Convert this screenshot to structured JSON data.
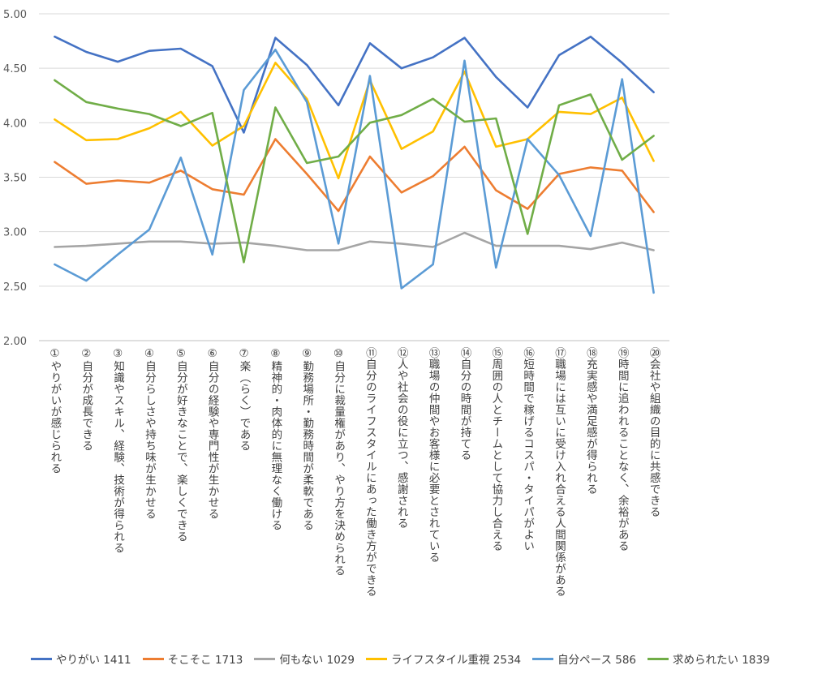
{
  "chart_data": {
    "type": "line",
    "title": "",
    "xlabel": "",
    "ylabel": "",
    "ylim": [
      2.0,
      5.0
    ],
    "yticks": [
      "5.00",
      "4.50",
      "4.00",
      "3.50",
      "3.00",
      "2.50",
      "2.00"
    ],
    "grid": true,
    "legend_position": "bottom",
    "categories": [
      "①やりがいが感じられる",
      "②自分が成長できる",
      "③知識やスキル、経験、技術が得られる",
      "④自分らしさや持ち味が生かせる",
      "⑤自分が好きなことで、楽しくできる",
      "⑥自分の経験や専門性が生かせる",
      "⑦楽（らく）である",
      "⑧精神的・肉体的に無理なく働ける",
      "⑨勤務場所・勤務時間が柔軟である",
      "⑩自分に裁量権があり、やり方を決められる",
      "⑪自分のライフスタイルにあった働き方ができる",
      "⑫人や社会の役に立つ、感謝される",
      "⑬職場の仲間やお客様に必要とされている",
      "⑭自分の時間が持てる",
      "⑮周囲の人とチームとして協力し合える",
      "⑯短時間で稼げるコスパ・タイパがよい",
      "⑰職場には互いに受け入れ合える人間関係がある",
      "⑱充実感や満足感が得られる",
      "⑲時間に追われることなく、余裕がある",
      "⑳会社や組織の目的に共感できる"
    ],
    "series": [
      {
        "name": "やりがい 1411",
        "color": "#4472C4",
        "values": [
          4.79,
          4.65,
          4.56,
          4.66,
          4.68,
          4.52,
          3.91,
          4.78,
          4.53,
          4.16,
          4.73,
          4.5,
          4.6,
          4.78,
          4.42,
          4.14,
          4.62,
          4.79,
          4.55,
          4.28
        ]
      },
      {
        "name": "そこそこ 1713",
        "color": "#ED7D31",
        "values": [
          3.64,
          3.44,
          3.47,
          3.45,
          3.56,
          3.39,
          3.34,
          3.85,
          3.53,
          3.19,
          3.69,
          3.36,
          3.51,
          3.78,
          3.38,
          3.21,
          3.53,
          3.59,
          3.56,
          3.18
        ]
      },
      {
        "name": "何もない 1029",
        "color": "#A5A5A5",
        "values": [
          2.86,
          2.87,
          2.89,
          2.91,
          2.91,
          2.89,
          2.9,
          2.87,
          2.83,
          2.83,
          2.91,
          2.89,
          2.86,
          2.99,
          2.87,
          2.87,
          2.87,
          2.84,
          2.9,
          2.83
        ]
      },
      {
        "name": "ライフスタイル重視 2534",
        "color": "#FFC000",
        "values": [
          4.03,
          3.84,
          3.85,
          3.95,
          4.1,
          3.79,
          3.97,
          4.55,
          4.22,
          3.49,
          4.39,
          3.76,
          3.92,
          4.47,
          3.78,
          3.85,
          4.1,
          4.08,
          4.23,
          3.65
        ]
      },
      {
        "name": "自分ペース 586",
        "color": "#5B9BD5",
        "values": [
          2.7,
          2.55,
          2.79,
          3.02,
          3.68,
          2.79,
          4.3,
          4.67,
          4.19,
          2.89,
          4.43,
          2.48,
          2.7,
          4.57,
          2.67,
          3.85,
          3.52,
          2.96,
          4.4,
          2.44
        ]
      },
      {
        "name": "求められたい 1839",
        "color": "#70AD47",
        "values": [
          4.39,
          4.19,
          4.13,
          4.08,
          3.97,
          4.09,
          2.72,
          4.14,
          3.63,
          3.69,
          4.0,
          4.07,
          4.22,
          4.01,
          4.04,
          2.98,
          4.16,
          4.26,
          3.66,
          3.88
        ]
      }
    ]
  }
}
